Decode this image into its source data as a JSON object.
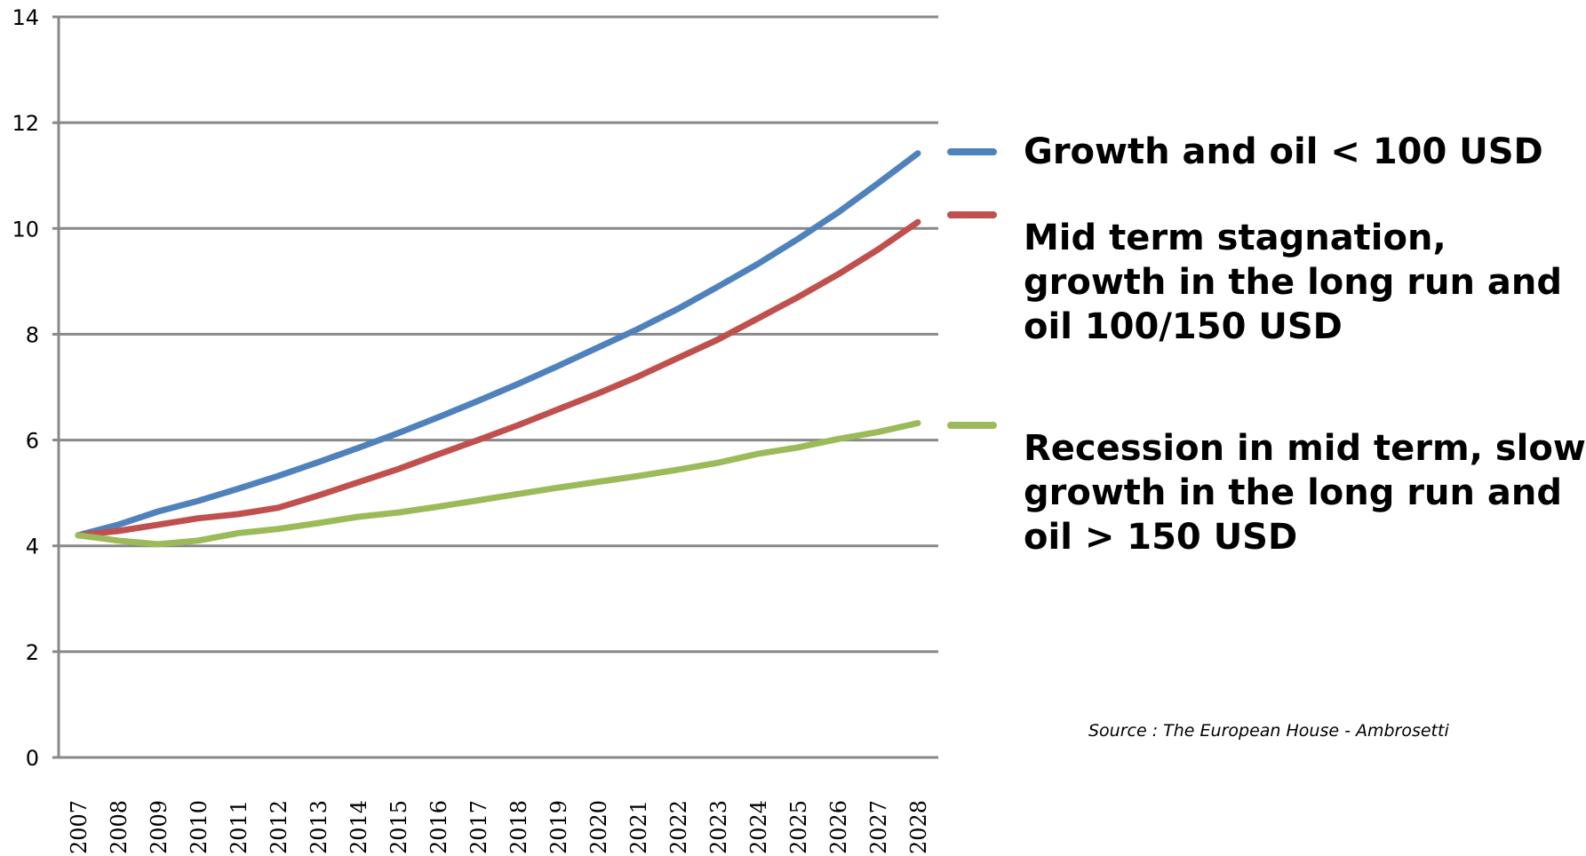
{
  "chart_data": {
    "type": "line",
    "x": [
      "2007",
      "2008",
      "2009",
      "2010",
      "2011",
      "2012",
      "2013",
      "2014",
      "2015",
      "2016",
      "2017",
      "2018",
      "2019",
      "2020",
      "2021",
      "2022",
      "2023",
      "2024",
      "2025",
      "2026",
      "2027",
      "2028"
    ],
    "ylim": [
      0,
      14
    ],
    "yticks": [
      "0",
      "2",
      "4",
      "6",
      "8",
      "10",
      "12",
      "14"
    ],
    "grid": true,
    "legend_position": "right",
    "series": [
      {
        "name": "Growth and oil < 100 USD",
        "color": "#4F81BD",
        "values": [
          4.2,
          4.4,
          4.65,
          4.85,
          5.08,
          5.32,
          5.58,
          5.85,
          6.13,
          6.43,
          6.74,
          7.06,
          7.4,
          7.75,
          8.1,
          8.48,
          8.9,
          9.33,
          9.8,
          10.3,
          10.85,
          11.42
        ]
      },
      {
        "name": "Mid term stagnation, growth in the long run and oil 100/150 USD",
        "color": "#C0504D",
        "values": [
          4.2,
          4.28,
          4.4,
          4.52,
          4.6,
          4.72,
          4.95,
          5.2,
          5.45,
          5.73,
          6.0,
          6.28,
          6.58,
          6.88,
          7.2,
          7.55,
          7.9,
          8.3,
          8.7,
          9.13,
          9.6,
          10.12
        ]
      },
      {
        "name": "Recession in mid term, slow growth in the long run and oil > 150 USD",
        "color": "#9BBB59",
        "values": [
          4.2,
          4.1,
          4.03,
          4.1,
          4.24,
          4.32,
          4.43,
          4.55,
          4.63,
          4.74,
          4.86,
          4.98,
          5.1,
          5.21,
          5.32,
          5.44,
          5.57,
          5.74,
          5.86,
          6.02,
          6.15,
          6.32
        ]
      }
    ],
    "legend_labels": [
      [
        "Growth and oil < 100 USD"
      ],
      [
        "Mid term stagnation,",
        "growth in the long run and",
        "oil 100/150 USD"
      ],
      [
        "Recession in mid term, slow",
        "growth in the long run and",
        "oil > 150 USD"
      ]
    ],
    "source": "Source : The European House - Ambrosetti"
  }
}
